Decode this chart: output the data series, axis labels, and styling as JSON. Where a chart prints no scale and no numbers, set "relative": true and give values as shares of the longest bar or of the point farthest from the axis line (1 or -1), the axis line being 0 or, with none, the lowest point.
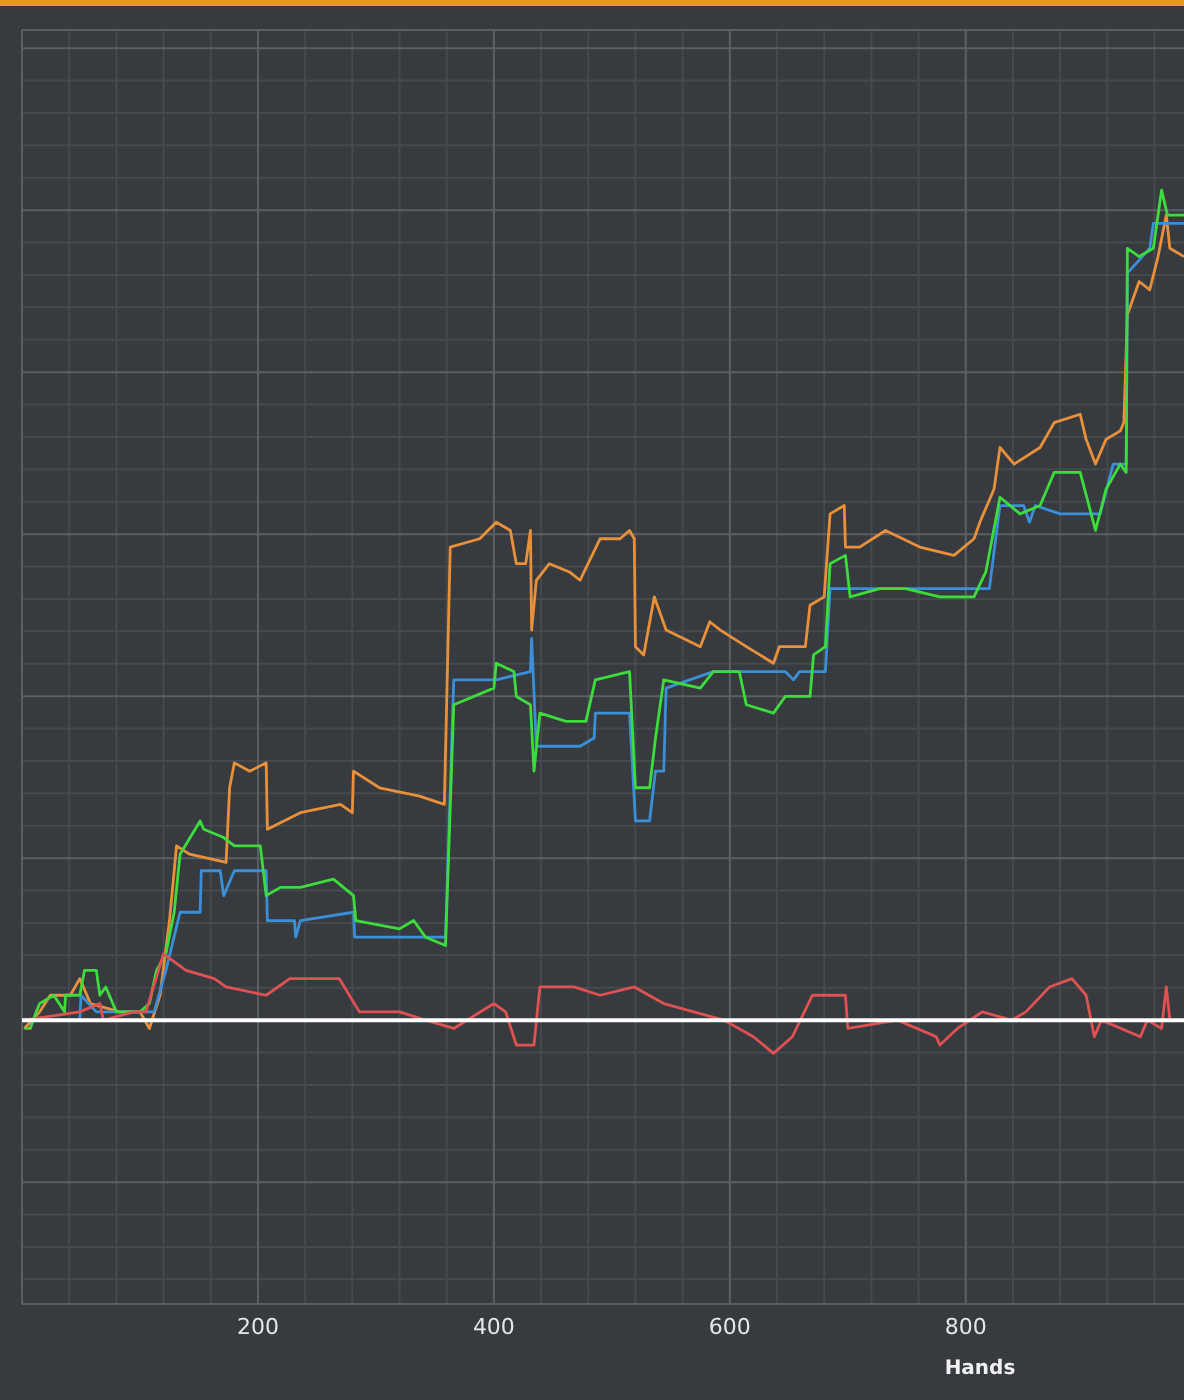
{
  "chart_data": {
    "type": "line",
    "xlabel": "Hands",
    "relative": true,
    "xlim": [
      0,
      985
    ],
    "xticks": [
      200,
      400,
      600,
      800
    ],
    "grid": true,
    "series": [
      {
        "color": "#e8913a",
        "x": [
          2,
          15,
          24,
          41,
          49,
          58,
          83,
          100,
          108,
          117,
          125,
          131,
          142,
          173,
          176,
          180,
          193,
          207,
          208,
          236,
          270,
          280,
          281,
          303,
          337,
          358,
          363,
          388,
          402,
          414,
          419,
          427,
          431,
          432,
          436,
          447,
          464,
          473,
          490,
          507,
          515,
          519,
          520,
          527,
          536,
          546,
          575,
          583,
          592,
          614,
          637,
          642,
          664,
          668,
          680,
          685,
          697,
          698,
          710,
          732,
          761,
          790,
          807,
          812,
          824,
          829,
          841,
          863,
          875,
          897,
          902,
          910,
          919,
          931,
          934,
          937,
          947,
          956,
          963,
          970,
          973,
          985
        ],
        "values": [
          -0.01,
          0.01,
          0.03,
          0.03,
          0.05,
          0.02,
          0.01,
          0.01,
          -0.01,
          0.03,
          0.12,
          0.21,
          0.2,
          0.19,
          0.28,
          0.31,
          0.3,
          0.31,
          0.23,
          0.25,
          0.26,
          0.25,
          0.3,
          0.28,
          0.27,
          0.26,
          0.57,
          0.58,
          0.6,
          0.59,
          0.55,
          0.55,
          0.59,
          0.47,
          0.53,
          0.55,
          0.54,
          0.53,
          0.58,
          0.58,
          0.59,
          0.58,
          0.45,
          0.44,
          0.51,
          0.47,
          0.45,
          0.48,
          0.47,
          0.45,
          0.43,
          0.45,
          0.45,
          0.5,
          0.51,
          0.61,
          0.62,
          0.57,
          0.57,
          0.59,
          0.57,
          0.56,
          0.58,
          0.6,
          0.64,
          0.69,
          0.67,
          0.69,
          0.72,
          0.73,
          0.7,
          0.67,
          0.7,
          0.71,
          0.72,
          0.85,
          0.89,
          0.88,
          0.92,
          0.97,
          0.93,
          0.92
        ]
      },
      {
        "color": "#3a8fd8",
        "x": [
          2,
          49,
          50,
          63,
          112,
          122,
          134,
          151,
          152,
          168,
          171,
          180,
          207,
          208,
          231,
          232,
          236,
          281,
          282,
          359,
          366,
          402,
          431,
          432,
          436,
          473,
          485,
          486,
          515,
          520,
          532,
          537,
          544,
          546,
          586,
          617,
          647,
          654,
          659,
          681,
          685,
          820,
          829,
          849,
          854,
          859,
          880,
          914,
          925,
          936,
          937,
          956,
          959,
          985
        ],
        "values": [
          0,
          0,
          0.03,
          0.01,
          0.01,
          0.06,
          0.13,
          0.13,
          0.18,
          0.18,
          0.15,
          0.18,
          0.18,
          0.12,
          0.12,
          0.1,
          0.12,
          0.13,
          0.1,
          0.1,
          0.41,
          0.41,
          0.42,
          0.46,
          0.33,
          0.33,
          0.34,
          0.37,
          0.37,
          0.24,
          0.24,
          0.3,
          0.3,
          0.4,
          0.42,
          0.42,
          0.42,
          0.41,
          0.42,
          0.42,
          0.52,
          0.52,
          0.62,
          0.62,
          0.6,
          0.62,
          0.61,
          0.61,
          0.67,
          0.67,
          0.9,
          0.93,
          0.96,
          0.96
        ]
      },
      {
        "color": "#3ddc3d",
        "x": [
          2,
          7,
          12,
          15,
          27,
          36,
          37,
          49,
          53,
          63,
          66,
          71,
          80,
          100,
          108,
          114,
          122,
          129,
          134,
          151,
          154,
          171,
          180,
          202,
          207,
          219,
          236,
          264,
          281,
          283,
          320,
          332,
          342,
          359,
          366,
          400,
          402,
          417,
          419,
          431,
          434,
          439,
          461,
          478,
          486,
          515,
          520,
          532,
          537,
          544,
          575,
          586,
          608,
          614,
          637,
          647,
          668,
          671,
          681,
          685,
          698,
          702,
          727,
          749,
          778,
          790,
          807,
          817,
          829,
          846,
          863,
          875,
          897,
          910,
          919,
          931,
          936,
          937,
          947,
          959,
          966,
          971,
          985
        ],
        "values": [
          -0.01,
          -0.01,
          0.01,
          0.02,
          0.03,
          0.01,
          0.03,
          0.03,
          0.06,
          0.06,
          0.03,
          0.04,
          0.01,
          0.01,
          0.02,
          0.06,
          0.08,
          0.13,
          0.2,
          0.24,
          0.23,
          0.22,
          0.21,
          0.21,
          0.15,
          0.16,
          0.16,
          0.17,
          0.15,
          0.12,
          0.11,
          0.12,
          0.1,
          0.09,
          0.38,
          0.4,
          0.43,
          0.42,
          0.39,
          0.38,
          0.3,
          0.37,
          0.36,
          0.36,
          0.41,
          0.42,
          0.28,
          0.28,
          0.34,
          0.41,
          0.4,
          0.42,
          0.42,
          0.38,
          0.37,
          0.39,
          0.39,
          0.44,
          0.45,
          0.55,
          0.56,
          0.51,
          0.52,
          0.52,
          0.51,
          0.51,
          0.51,
          0.54,
          0.63,
          0.61,
          0.62,
          0.66,
          0.66,
          0.59,
          0.64,
          0.67,
          0.66,
          0.93,
          0.92,
          0.93,
          1,
          0.97,
          0.97
        ]
      },
      {
        "color": "#e05252",
        "x": [
          2,
          49,
          66,
          69,
          95,
          105,
          120,
          139,
          163,
          173,
          207,
          227,
          247,
          269,
          286,
          320,
          342,
          366,
          400,
          410,
          419,
          434,
          439,
          468,
          490,
          519,
          544,
          595,
          620,
          637,
          653,
          670,
          698,
          700,
          742,
          775,
          778,
          793,
          814,
          839,
          851,
          871,
          890,
          902,
          909,
          915,
          948,
          954,
          966,
          970,
          973,
          985
        ],
        "values": [
          0,
          0.01,
          0.02,
          0,
          0.01,
          0.01,
          0.08,
          0.06,
          0.05,
          0.04,
          0.03,
          0.05,
          0.05,
          0.05,
          0.01,
          0.01,
          0,
          -0.01,
          0.02,
          0.01,
          -0.03,
          -0.03,
          0.04,
          0.04,
          0.03,
          0.04,
          0.02,
          0,
          -0.02,
          -0.04,
          -0.02,
          0.03,
          0.03,
          -0.01,
          0,
          -0.02,
          -0.03,
          -0.01,
          0.01,
          0,
          0.01,
          0.04,
          0.05,
          0.03,
          -0.02,
          0,
          -0.02,
          0,
          -0.01,
          0.04,
          0,
          0
        ]
      }
    ]
  }
}
